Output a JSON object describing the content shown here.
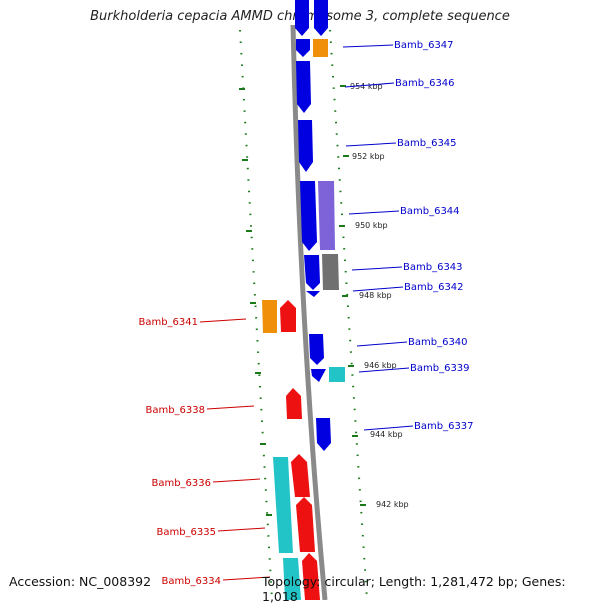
{
  "title": "Burkholderia cepacia AMMD chromosome 3, complete sequence",
  "footer": {
    "accession": "Accession: NC_008392",
    "summary": "Topology: circular; Length: 1,281,472 bp; Genes: 1,018"
  },
  "colors": {
    "backbone": "#8a8a8a",
    "forward_label": "#0000cc",
    "reverse_label": "#cc0000",
    "tick": "#1a7a1a"
  },
  "scale_labels": [
    {
      "id": "954",
      "text": "954 kbp"
    },
    {
      "id": "952",
      "text": "952 kbp"
    },
    {
      "id": "950",
      "text": "950 kbp"
    },
    {
      "id": "948",
      "text": "948 kbp"
    },
    {
      "id": "946",
      "text": "946 kbp"
    },
    {
      "id": "944",
      "text": "944 kbp"
    },
    {
      "id": "942",
      "text": "942 kbp"
    }
  ],
  "genes_forward": [
    {
      "name": "Bamb_6347"
    },
    {
      "name": "Bamb_6346"
    },
    {
      "name": "Bamb_6345"
    },
    {
      "name": "Bamb_6344"
    },
    {
      "name": "Bamb_6343"
    },
    {
      "name": "Bamb_6342"
    },
    {
      "name": "Bamb_6340"
    },
    {
      "name": "Bamb_6339"
    },
    {
      "name": "Bamb_6337"
    }
  ],
  "genes_reverse": [
    {
      "name": "Bamb_6341"
    },
    {
      "name": "Bamb_6338"
    },
    {
      "name": "Bamb_6336"
    },
    {
      "name": "Bamb_6335"
    },
    {
      "name": "Bamb_6334"
    }
  ]
}
